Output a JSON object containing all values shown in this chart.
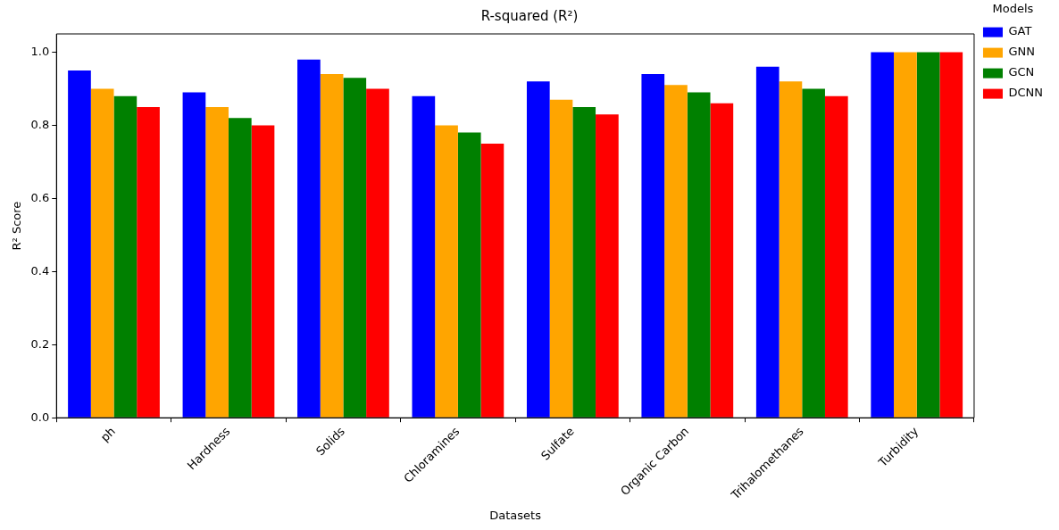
{
  "chart_data": {
    "type": "bar",
    "title": "R-squared (R²)",
    "xlabel": "Datasets",
    "ylabel": "R² Score",
    "legend_title": "Models",
    "categories": [
      "ph",
      "Hardness",
      "Solids",
      "Chloramines",
      "Sulfate",
      "Organic Carbon",
      "Trihalomethanes",
      "Turbidity"
    ],
    "series": [
      {
        "name": "GAT",
        "color": "#0000ff",
        "values": [
          0.95,
          0.89,
          0.98,
          0.88,
          0.92,
          0.94,
          0.96,
          1.0
        ]
      },
      {
        "name": "GNN",
        "color": "#ffa500",
        "values": [
          0.9,
          0.85,
          0.94,
          0.8,
          0.87,
          0.91,
          0.92,
          1.0
        ]
      },
      {
        "name": "GCN",
        "color": "#008000",
        "values": [
          0.88,
          0.82,
          0.93,
          0.78,
          0.85,
          0.89,
          0.9,
          1.0
        ]
      },
      {
        "name": "DCNN",
        "color": "#ff0000",
        "values": [
          0.85,
          0.8,
          0.9,
          0.75,
          0.83,
          0.86,
          0.88,
          1.0
        ]
      }
    ],
    "ylim": [
      0,
      1.05
    ],
    "yticks": [
      {
        "value": 0,
        "label": "0.0"
      },
      {
        "value": 0.2,
        "label": "0.2"
      },
      {
        "value": 0.4,
        "label": "0.4"
      },
      {
        "value": 0.6,
        "label": "0.6"
      },
      {
        "value": 0.8,
        "label": "0.8"
      },
      {
        "value": 1.0,
        "label": "1.0"
      }
    ],
    "grid": false,
    "legend": "top right"
  }
}
